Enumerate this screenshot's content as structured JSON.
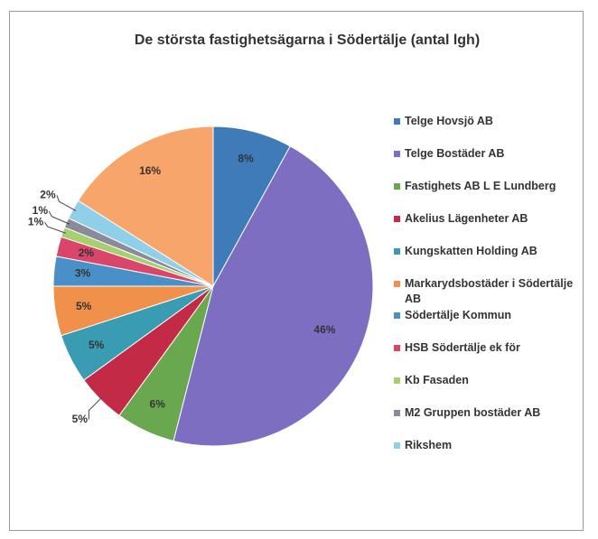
{
  "chart_data": {
    "type": "pie",
    "title": "De största fastighetsägarna i Södertälje (antal lgh)",
    "categories": [
      "Telge Hovsjö AB",
      "Telge Bostäder AB",
      "Fastighets AB L E Lundberg",
      "Akelius Lägenheter AB",
      "Kungskatten Holding AB",
      "Markarydsbostäder i Södertälje AB",
      "Södertälje Kommun",
      "HSB Södertälje ek för",
      "Kb Fasaden",
      "M2 Gruppen bostäder AB",
      "Rikshem",
      null
    ],
    "values": [
      8,
      46,
      6,
      5,
      5,
      5,
      3,
      2,
      1,
      1,
      2,
      16
    ],
    "value_labels": [
      "8%",
      "46%",
      "6%",
      "5%",
      "5%",
      "5%",
      "3%",
      "2%",
      "1%",
      "1%",
      "2%",
      "16%"
    ],
    "colors": [
      "#3f7bb8",
      "#7d6ec2",
      "#6aa84f",
      "#c22a45",
      "#3a9cb2",
      "#f0904a",
      "#4a90c8",
      "#d9466a",
      "#a8cf6f",
      "#8a8a9a",
      "#8fd0e8",
      "#f7a56a"
    ]
  }
}
